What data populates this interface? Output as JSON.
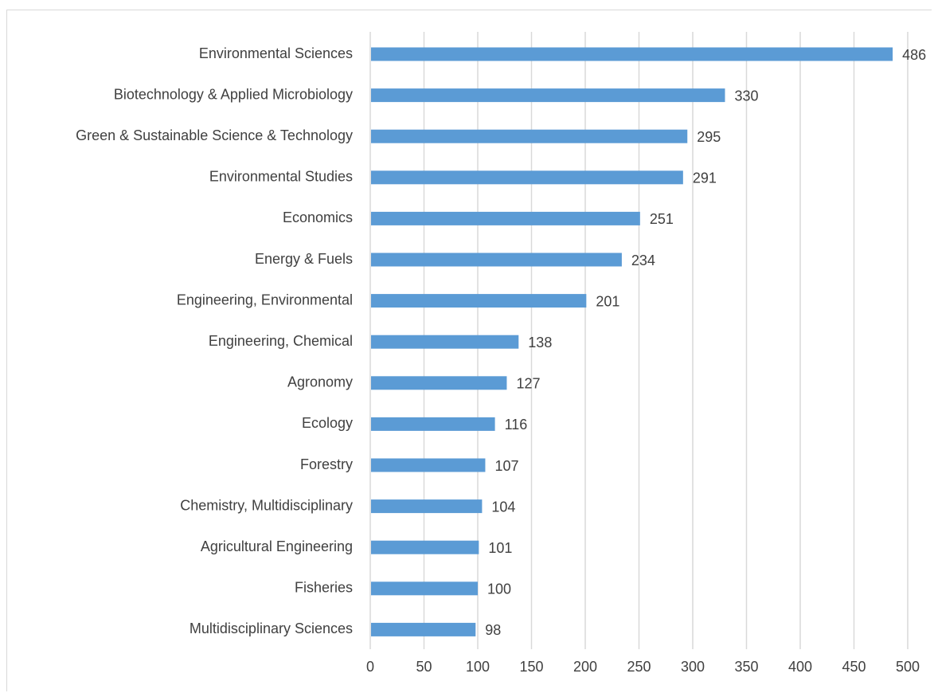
{
  "chart_data": {
    "type": "bar",
    "orientation": "horizontal",
    "categories": [
      "Environmental Sciences",
      "Biotechnology & Applied Microbiology",
      "Green & Sustainable Science & Technology",
      "Environmental Studies",
      "Economics",
      "Energy & Fuels",
      "Engineering, Environmental",
      "Engineering, Chemical",
      "Agronomy",
      "Ecology",
      "Forestry",
      "Chemistry, Multidisciplinary",
      "Agricultural Engineering",
      "Fisheries",
      "Multidisciplinary Sciences"
    ],
    "values": [
      486,
      330,
      295,
      291,
      251,
      234,
      201,
      138,
      127,
      116,
      107,
      104,
      101,
      100,
      98
    ],
    "value_labels": [
      "486",
      "330",
      "295",
      "291",
      "251",
      "234",
      "201",
      "138",
      "127",
      "116",
      "107",
      "104",
      "101",
      "100",
      "98"
    ],
    "xlim": [
      0,
      500
    ],
    "xticks": [
      0,
      50,
      100,
      150,
      200,
      250,
      300,
      350,
      400,
      450,
      500
    ],
    "xtick_labels": [
      "0",
      "50",
      "100",
      "150",
      "200",
      "250",
      "300",
      "350",
      "400",
      "450",
      "500"
    ],
    "title": "",
    "xlabel": "",
    "ylabel": "",
    "grid": "vertical",
    "legend": "none",
    "bar_color": "#5B9BD5",
    "grid_color": "#D9D9D9",
    "text_color": "#404040"
  }
}
